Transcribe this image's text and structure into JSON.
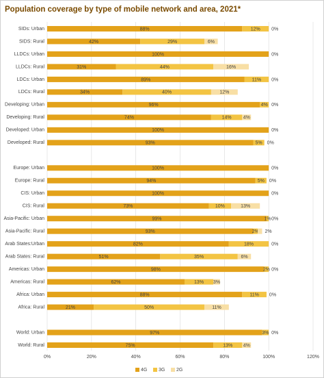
{
  "chart_data": {
    "type": "stacked-barh",
    "title": "Population coverage by type of mobile network and area, 2021*",
    "categories": [
      "SIDs: Urban",
      "SIDS: Rural",
      "LLDCs: Urban",
      "LLDCs: Rural",
      "LDCs: Urban",
      "LDCs: Rural",
      "Developing: Urban",
      "Developing: Rural",
      "Developed: Urban",
      "Developed: Rural",
      null,
      "Europe: Urban",
      "Europe: Rural",
      "CIS: Urban",
      "CIS: Rural",
      "Asia-Pacific: Urban",
      "Asia-Pacific: Rural",
      "Arab States:Urban",
      "Arab States: Rural",
      "Americas: Urban",
      "Americas: Rural",
      "Africa: Urban",
      "Africa: Rural",
      null,
      "World: Urban",
      "World: Rural"
    ],
    "series": [
      {
        "name": "4G",
        "color": "#e3a21a",
        "values": [
          88,
          42,
          100,
          31,
          89,
          34,
          96,
          74,
          100,
          93,
          null,
          100,
          94,
          100,
          73,
          99,
          93,
          82,
          51,
          98,
          62,
          88,
          21,
          null,
          97,
          75
        ],
        "value_labels": [
          "88%",
          "42%",
          "100%",
          "31%",
          "89%",
          "34%",
          "96%",
          "74%",
          "100%",
          "93%",
          null,
          "100%",
          "94%",
          "100%",
          "73%",
          "99%",
          "93%",
          "82%",
          "51%",
          "98%",
          "62%",
          "88%",
          "21%",
          null,
          "97%",
          "75%"
        ]
      },
      {
        "name": "3G",
        "color": "#f3c443",
        "values": [
          12,
          29,
          0,
          44,
          11,
          40,
          4,
          14,
          0,
          5,
          null,
          0,
          5,
          0,
          10,
          1,
          2,
          18,
          35,
          2,
          13,
          11,
          50,
          null,
          3,
          13
        ],
        "value_labels": [
          "12%",
          "29%",
          null,
          "44%",
          "11%",
          "40%",
          "4%",
          "14%",
          null,
          "5%",
          null,
          null,
          "5%",
          null,
          "10%",
          "1%",
          "2%",
          "18%",
          "35%",
          "2%",
          "13%",
          "11%",
          "50%",
          null,
          "3%",
          "13%"
        ]
      },
      {
        "name": "2G",
        "color": "#f8dfa5",
        "values": [
          0,
          6,
          0,
          16,
          0,
          12,
          0,
          4,
          0,
          0,
          null,
          0,
          0,
          0,
          13,
          0,
          2,
          0,
          6,
          0,
          3,
          0,
          11,
          null,
          0,
          4
        ],
        "value_labels": [
          "0%",
          "6%",
          "0%",
          "16%",
          "0%",
          "12%",
          "0%",
          "4%",
          "0%",
          "0%",
          null,
          "0%",
          "0%",
          "0%",
          "13%",
          "0%",
          "2%",
          "0%",
          "6%",
          "0%",
          "3%",
          "0%",
          "11%",
          null,
          "0%",
          "4%"
        ]
      }
    ],
    "xlim": [
      0,
      120
    ],
    "xticks": [
      {
        "value": 0,
        "label": "0%"
      },
      {
        "value": 20,
        "label": "20%"
      },
      {
        "value": 40,
        "label": "40%"
      },
      {
        "value": 60,
        "label": "60%"
      },
      {
        "value": 80,
        "label": "80%"
      },
      {
        "value": 100,
        "label": "100%"
      },
      {
        "value": 120,
        "label": "120%"
      }
    ],
    "grid": true,
    "legend": "bottom"
  }
}
